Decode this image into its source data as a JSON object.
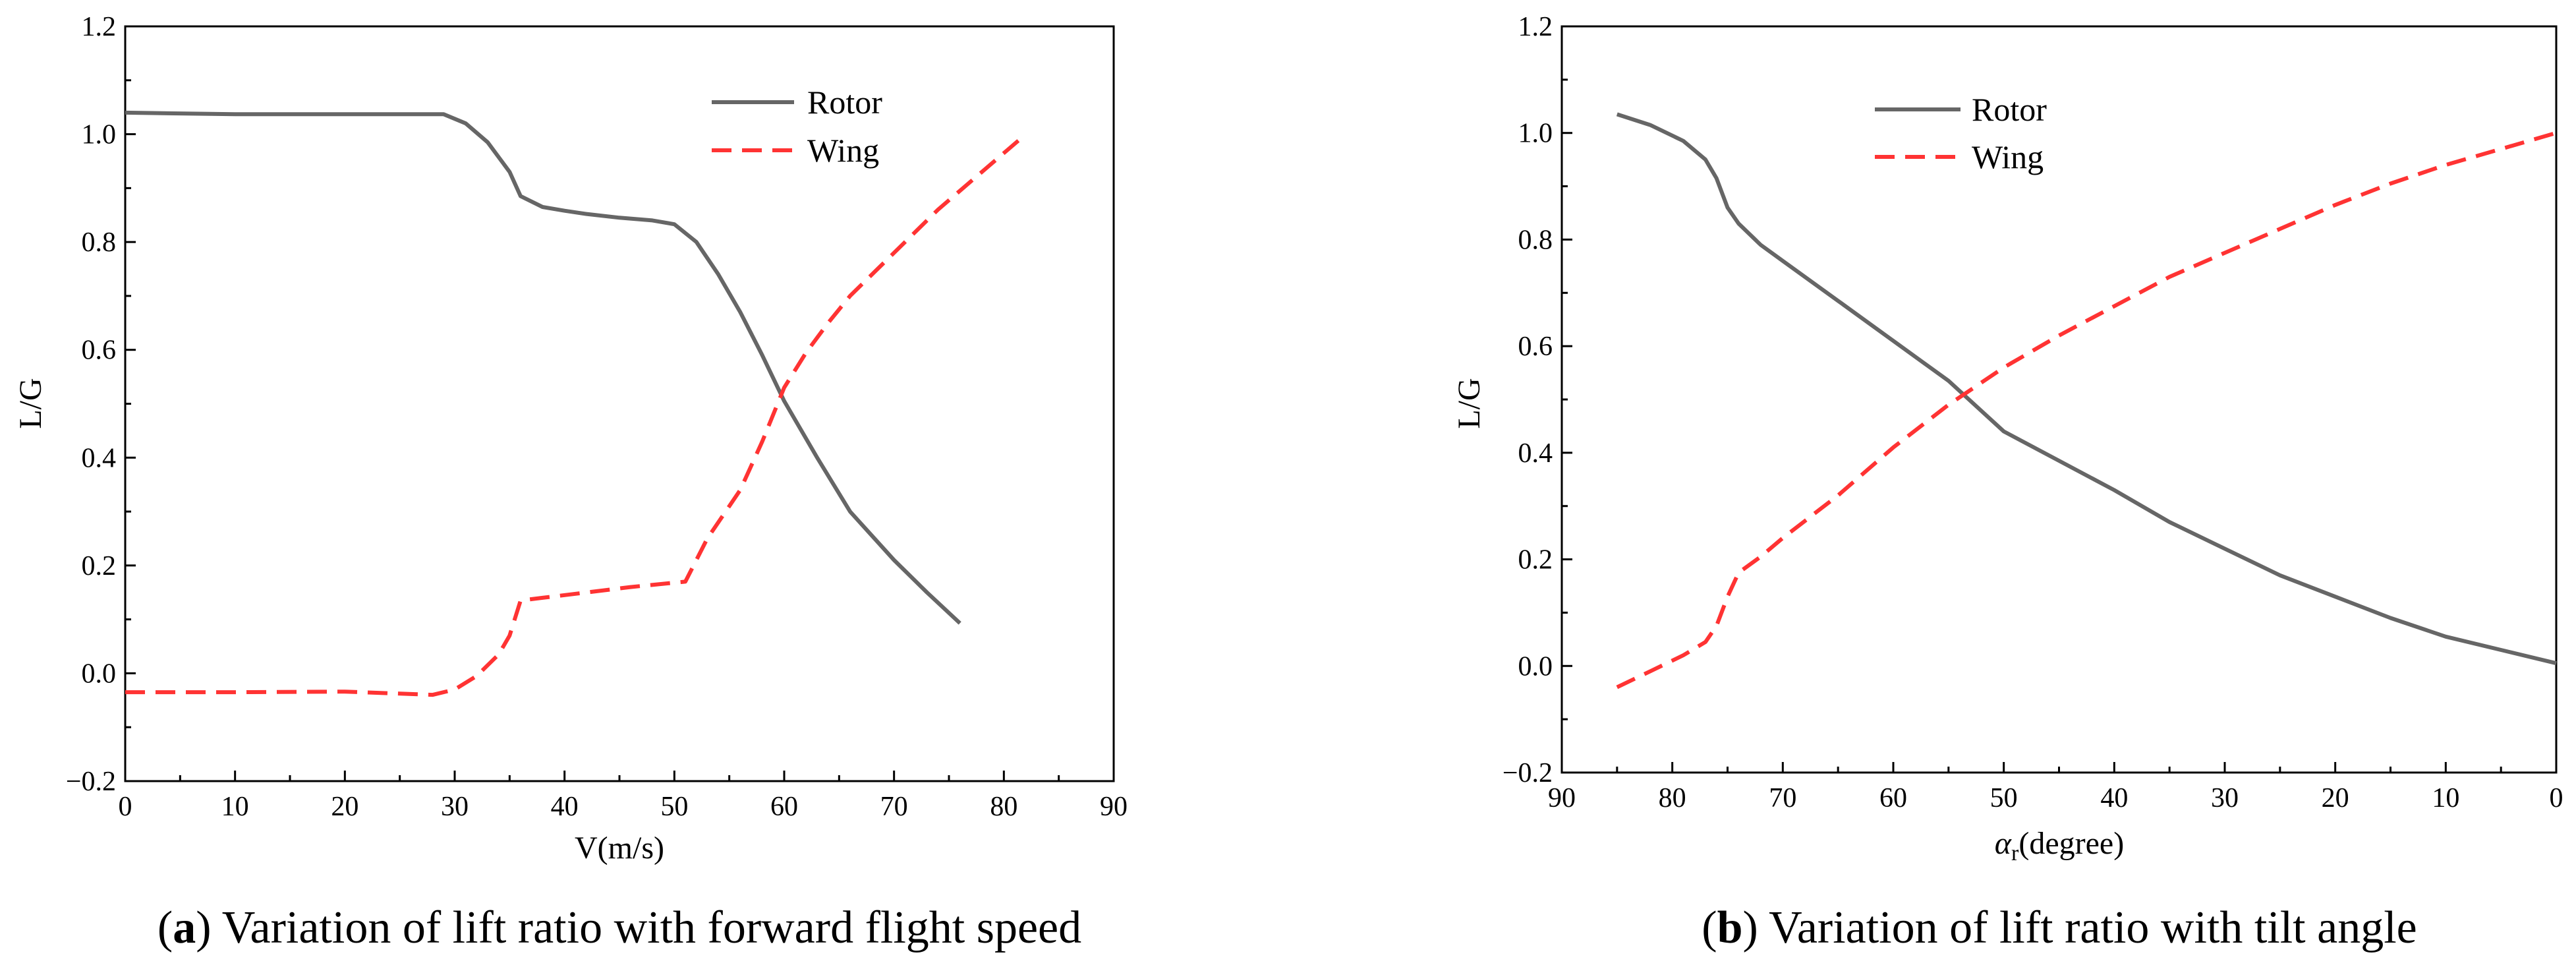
{
  "chart_data": [
    {
      "id": "a",
      "type": "line",
      "caption_letter": "a",
      "caption_open": "(",
      "caption_close": ")",
      "caption_text": " Variation of lift ratio with forward flight speed",
      "xlabel": "V(m/s)",
      "ylabel": "L/G",
      "xlim": [
        0,
        90
      ],
      "ylim": [
        -0.2,
        1.2
      ],
      "x_reversed": false,
      "xticks": [
        0,
        10,
        20,
        30,
        40,
        50,
        60,
        70,
        80,
        90
      ],
      "xtick_labels": [
        "0",
        "10",
        "20",
        "30",
        "40",
        "50",
        "60",
        "70",
        "80",
        "90"
      ],
      "yticks": [
        -0.2,
        0.0,
        0.2,
        0.4,
        0.6,
        0.8,
        1.0,
        1.2
      ],
      "ytick_labels": [
        "−0.2",
        "0.0",
        "0.2",
        "0.4",
        "0.6",
        "0.8",
        "1.0",
        "1.2"
      ],
      "legend_position": "top-center",
      "series": [
        {
          "name": "Rotor",
          "color": "#666666",
          "dash": "solid",
          "x": [
            0,
            10,
            20,
            29,
            31,
            33,
            35,
            36,
            38,
            40,
            42,
            45,
            48,
            50,
            52,
            54,
            56,
            58,
            60,
            63,
            66,
            70,
            73,
            76
          ],
          "y": [
            1.04,
            1.037,
            1.037,
            1.037,
            1.02,
            0.985,
            0.93,
            0.885,
            0.865,
            0.858,
            0.852,
            0.845,
            0.84,
            0.833,
            0.8,
            0.74,
            0.67,
            0.59,
            0.505,
            0.4,
            0.3,
            0.21,
            0.15,
            0.093
          ]
        },
        {
          "name": "Wing",
          "color": "#FF3333",
          "dash": "dashed",
          "x": [
            0,
            10,
            20,
            28,
            30,
            32,
            34,
            35,
            36,
            38,
            42,
            46,
            50,
            51,
            53,
            56,
            58,
            60,
            62,
            64,
            66,
            70,
            74,
            78,
            82
          ],
          "y": [
            -0.035,
            -0.035,
            -0.034,
            -0.04,
            -0.03,
            -0.005,
            0.035,
            0.07,
            0.135,
            0.14,
            0.15,
            0.16,
            0.168,
            0.17,
            0.25,
            0.34,
            0.43,
            0.53,
            0.595,
            0.65,
            0.7,
            0.78,
            0.86,
            0.93,
            1.0
          ]
        }
      ]
    },
    {
      "id": "b",
      "type": "line",
      "caption_letter": "b",
      "caption_open": "(",
      "caption_close": ")",
      "caption_text": " Variation of lift ratio with tilt angle",
      "xlabel_symbol": "α",
      "xlabel_sub": "r",
      "xlabel_rest": "(degree)",
      "ylabel": "L/G",
      "xlim": [
        90,
        0
      ],
      "ylim": [
        -0.2,
        1.2
      ],
      "x_reversed": true,
      "xticks": [
        90,
        80,
        70,
        60,
        50,
        40,
        30,
        20,
        10,
        0
      ],
      "xtick_labels": [
        "90",
        "80",
        "70",
        "60",
        "50",
        "40",
        "30",
        "20",
        "10",
        "0"
      ],
      "yticks": [
        -0.2,
        0.0,
        0.2,
        0.4,
        0.6,
        0.8,
        1.0,
        1.2
      ],
      "ytick_labels": [
        "−0.2",
        "0.0",
        "0.2",
        "0.4",
        "0.6",
        "0.8",
        "1.0",
        "1.2"
      ],
      "legend_position": "top-center",
      "series": [
        {
          "name": "Rotor",
          "color": "#666666",
          "dash": "solid",
          "x": [
            85,
            82,
            79,
            77,
            76,
            75,
            74,
            72,
            70,
            65,
            60,
            55,
            50,
            45,
            40,
            35,
            30,
            25,
            20,
            15,
            10,
            5,
            0
          ],
          "y": [
            1.035,
            1.015,
            0.985,
            0.95,
            0.915,
            0.86,
            0.83,
            0.79,
            0.76,
            0.685,
            0.61,
            0.535,
            0.44,
            0.385,
            0.33,
            0.27,
            0.22,
            0.17,
            0.13,
            0.09,
            0.055,
            0.03,
            0.005
          ]
        },
        {
          "name": "Wing",
          "color": "#FF3333",
          "dash": "dashed",
          "x": [
            85,
            82,
            79,
            77,
            76,
            75,
            74,
            72,
            70,
            65,
            60,
            55,
            50,
            45,
            40,
            35,
            30,
            25,
            20,
            15,
            10,
            5,
            0
          ],
          "y": [
            -0.04,
            -0.01,
            0.02,
            0.045,
            0.075,
            0.13,
            0.175,
            0.205,
            0.24,
            0.32,
            0.41,
            0.49,
            0.56,
            0.62,
            0.675,
            0.73,
            0.775,
            0.82,
            0.865,
            0.905,
            0.94,
            0.97,
            1.0
          ]
        }
      ]
    }
  ]
}
